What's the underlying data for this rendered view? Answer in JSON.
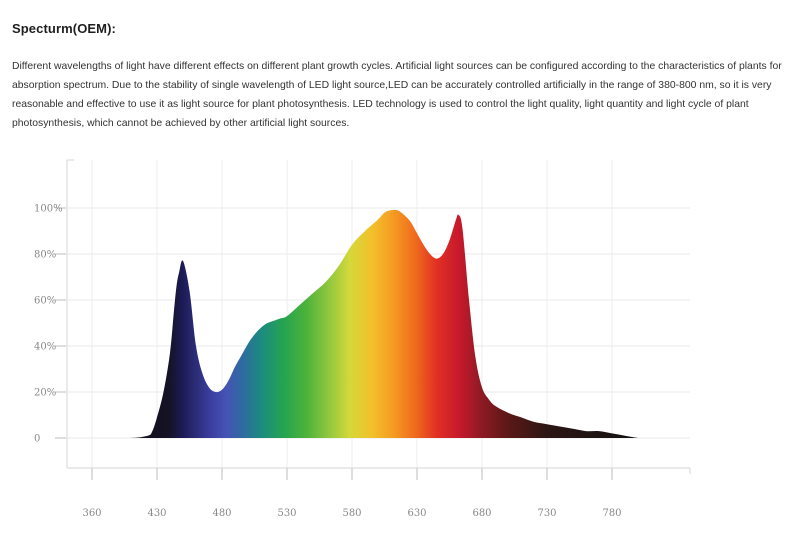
{
  "header": {
    "title": "Specturm(OEM):"
  },
  "content": {
    "description": "Different wavelengths of light have different effects on different plant growth cycles. Artificial light sources can be configured according to the characteristics of plants for absorption spectrum. Due to the stability of single wavelength of LED light source,LED can be accurately controlled artificially in the range of 380-800 nm, so it is very reasonable and effective to use it as light source for plant photosynthesis. LED technology is used to control the light quality, light quantity and light cycle of plant photosynthesis, which cannot be achieved by other artificial light sources."
  },
  "chart_data": {
    "type": "area",
    "title": "",
    "xlabel": "",
    "ylabel": "",
    "xlim": [
      360,
      800
    ],
    "ylim": [
      0,
      100
    ],
    "xticks": [
      360,
      430,
      480,
      530,
      580,
      630,
      680,
      730,
      780
    ],
    "yticks": [
      0,
      20,
      40,
      60,
      80,
      100
    ],
    "ytick_labels": [
      "0",
      "20%",
      "40%",
      "60%",
      "80%",
      "100%"
    ],
    "grid": true,
    "series": [
      {
        "x": [
          360,
          400,
          420,
          425,
          430,
          435,
          440,
          443,
          445,
          447,
          450,
          455,
          460,
          465,
          470,
          475,
          480,
          485,
          490,
          495,
          500,
          505,
          510,
          515,
          520,
          525,
          530,
          540,
          550,
          560,
          570,
          580,
          590,
          600,
          605,
          610,
          615,
          620,
          625,
          630,
          635,
          640,
          645,
          650,
          655,
          660,
          662,
          665,
          670,
          675,
          680,
          685,
          690,
          700,
          710,
          720,
          730,
          740,
          750,
          760,
          770,
          780,
          790,
          800
        ],
        "y": [
          0,
          0,
          1,
          3,
          9,
          20,
          37,
          55,
          66,
          72,
          77,
          64,
          40,
          28,
          22,
          20,
          21,
          25,
          31,
          36,
          41,
          45,
          48,
          50,
          51,
          52,
          53,
          58,
          63,
          68,
          75,
          84,
          90,
          95,
          98,
          99,
          99,
          97,
          94,
          89,
          84,
          80,
          78,
          80,
          86,
          95,
          97,
          91,
          60,
          35,
          22,
          17,
          14,
          11,
          9,
          7,
          6,
          5,
          4,
          3,
          3,
          2,
          1,
          0
        ]
      }
    ]
  }
}
